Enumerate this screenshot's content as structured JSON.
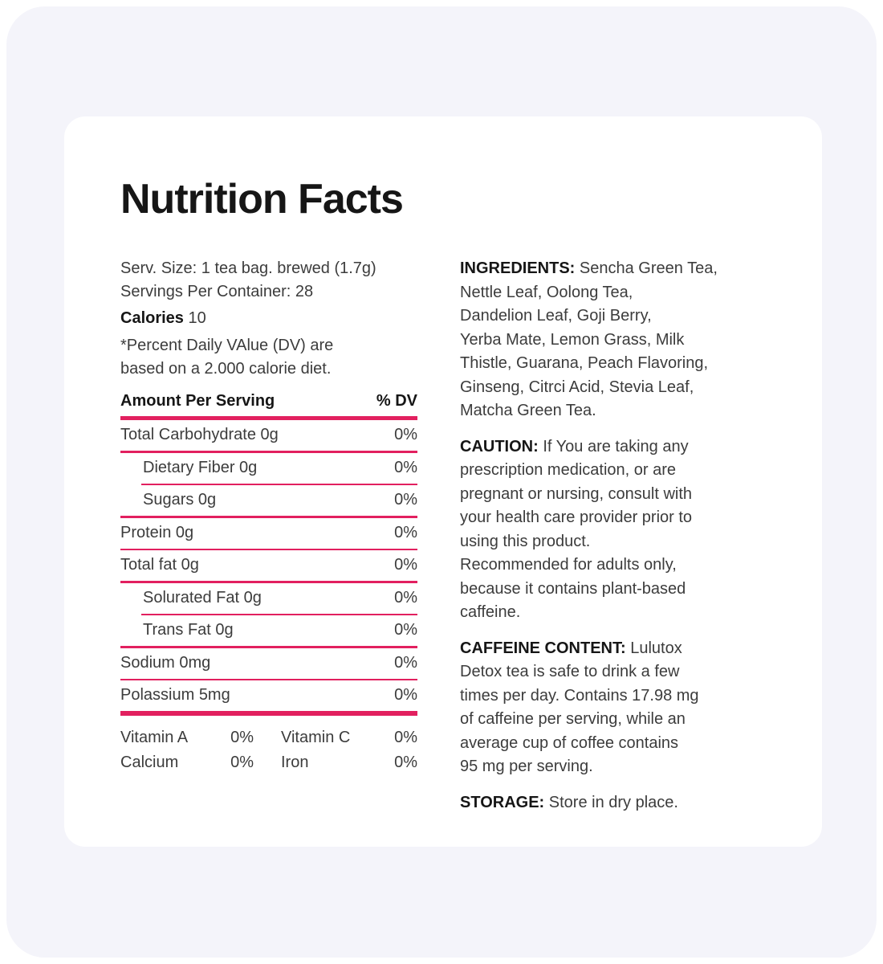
{
  "title": "Nutrition Facts",
  "serving": {
    "size_line": "Serv. Size: 1 tea bag. brewed (1.7g)",
    "per_container_line": "Servings Per Container: 28",
    "calories_label": "Calories",
    "calories_value": "10",
    "footnote": "*Percent Daily VAlue (DV) are\nbased on a 2.000 calorie diet."
  },
  "table": {
    "header": {
      "amount_label": "Amount Per Serving",
      "dv_label": "% DV"
    },
    "rows": [
      {
        "label": "Total Carbohydrate 0g",
        "dv": "0%",
        "indent": false,
        "separator": "full"
      },
      {
        "label": "Dietary Fiber 0g",
        "dv": "0%",
        "indent": true,
        "separator": "indented"
      },
      {
        "label": "Sugars 0g",
        "dv": "0%",
        "indent": true,
        "separator": "full"
      },
      {
        "label": "Protein 0g",
        "dv": "0%",
        "indent": false,
        "separator": "full"
      },
      {
        "label": "Total fat 0g",
        "dv": "0%",
        "indent": false,
        "separator": "full"
      },
      {
        "label": "Solurated Fat 0g",
        "dv": "0%",
        "indent": true,
        "separator": "indented"
      },
      {
        "label": "Trans Fat 0g",
        "dv": "0%",
        "indent": true,
        "separator": "full"
      },
      {
        "label": "Sodium 0mg",
        "dv": "0%",
        "indent": false,
        "separator": "full"
      },
      {
        "label": "Polassium 5mg",
        "dv": "0%",
        "indent": false,
        "separator": "thick"
      }
    ],
    "micronutrients": [
      {
        "label": "Vitamin A",
        "value": "0%"
      },
      {
        "label": "Vitamin C",
        "value": "0%"
      },
      {
        "label": "Calcium",
        "value": "0%"
      },
      {
        "label": "Iron",
        "value": "0%"
      }
    ]
  },
  "info_sections": [
    {
      "id": "ingredients",
      "heading": "INGREDIENTS:",
      "text": "Sencha Green Tea,\nNettle Leaf, Oolong Tea,\nDandelion Leaf, Goji Berry,\nYerba Mate, Lemon Grass, Milk\nThistle, Guarana, Peach Flavoring,\nGinseng, Citrci Acid, Stevia Leaf,\nMatcha Green Tea."
    },
    {
      "id": "caution",
      "heading": "CAUTION:",
      "text": "If You are taking any\nprescription medication, or are\npregnant or nursing, consult with\nyour health care provider prior to\nusing this product.\nRecommended for adults only,\nbecause it contains plant-based\ncaffeine."
    },
    {
      "id": "caffeine-content",
      "heading": "CAFFEINE CONTENT:",
      "text": "Lulutox\nDetox tea is safe to drink a few\ntimes per day. Contains 17.98 mg\nof caffeine per serving, while an\naverage cup of coffee contains\n95 mg per serving."
    },
    {
      "id": "storage",
      "heading": "STORAGE:",
      "text": "Store in dry place."
    }
  ],
  "colors": {
    "accent": "#E2205F",
    "page_bg": "#FFFFFF",
    "panel_bg": "#F4F4FA",
    "card_bg": "#FFFFFF",
    "body_text": "#3C3C3C",
    "strong_text": "#161616"
  }
}
